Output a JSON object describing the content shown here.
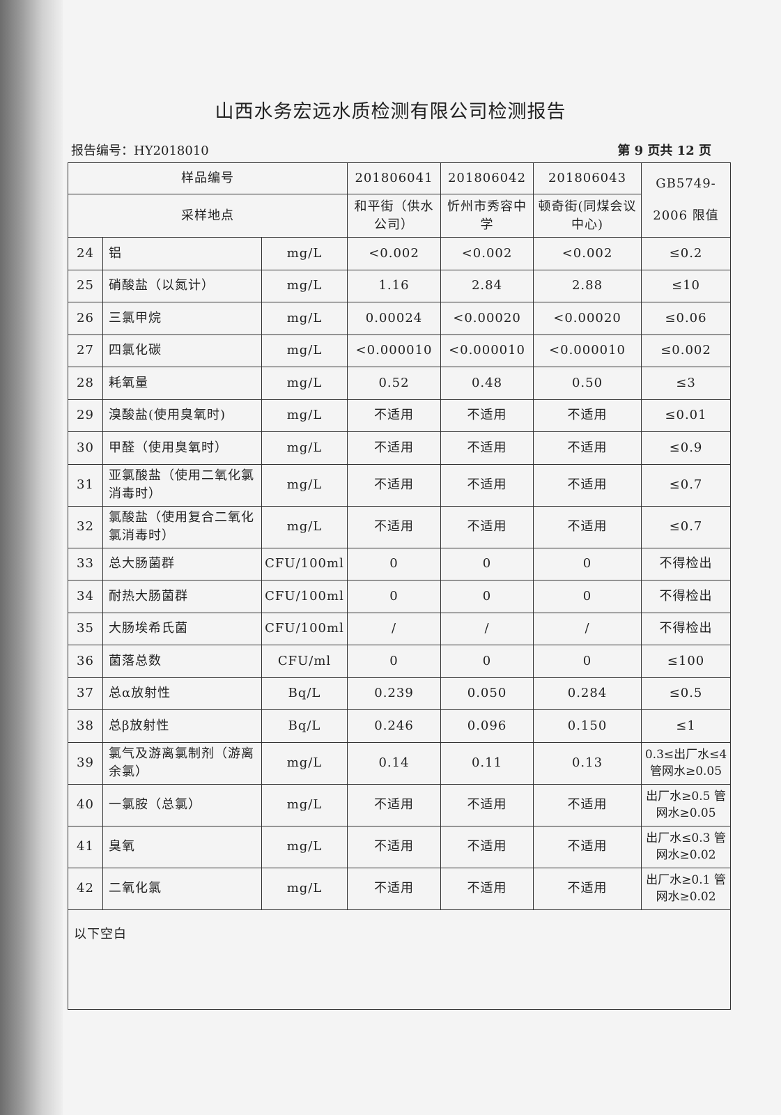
{
  "title": "山西水务宏远水质检测有限公司检测报告",
  "report_no": "报告编号：HY2018010",
  "page_no": "第 9 页共 12 页",
  "header": {
    "sample_id_label": "样品编号",
    "location_label": "采样地点",
    "standard_label": "GB5749-2006 限值",
    "samples": [
      {
        "id": "201806041",
        "location": "和平街（供水公司）"
      },
      {
        "id": "201806042",
        "location": "忻州市秀容中学"
      },
      {
        "id": "201806043",
        "location": "顿奇街(同煤会议中心)"
      }
    ]
  },
  "rows": [
    {
      "no": "24",
      "item": "铝",
      "unit": "mg/L",
      "v": [
        "<0.002",
        "<0.002",
        "<0.002"
      ],
      "limit": "≤0.2"
    },
    {
      "no": "25",
      "item": "硝酸盐（以氮计）",
      "unit": "mg/L",
      "v": [
        "1.16",
        "2.84",
        "2.88"
      ],
      "limit": "≤10"
    },
    {
      "no": "26",
      "item": "三氯甲烷",
      "unit": "mg/L",
      "v": [
        "0.00024",
        "<0.00020",
        "<0.00020"
      ],
      "limit": "≤0.06"
    },
    {
      "no": "27",
      "item": "四氯化碳",
      "unit": "mg/L",
      "v": [
        "<0.000010",
        "<0.000010",
        "<0.000010"
      ],
      "limit": "≤0.002"
    },
    {
      "no": "28",
      "item": "耗氧量",
      "unit": "mg/L",
      "v": [
        "0.52",
        "0.48",
        "0.50"
      ],
      "limit": "≤3"
    },
    {
      "no": "29",
      "item": "溴酸盐(使用臭氧时)",
      "unit": "mg/L",
      "v": [
        "不适用",
        "不适用",
        "不适用"
      ],
      "limit": "≤0.01"
    },
    {
      "no": "30",
      "item": "甲醛（使用臭氧时）",
      "unit": "mg/L",
      "v": [
        "不适用",
        "不适用",
        "不适用"
      ],
      "limit": "≤0.9"
    },
    {
      "no": "31",
      "item": "亚氯酸盐（使用二氧化氯消毒时）",
      "unit": "mg/L",
      "v": [
        "不适用",
        "不适用",
        "不适用"
      ],
      "limit": "≤0.7"
    },
    {
      "no": "32",
      "item": "氯酸盐（使用复合二氧化氯消毒时）",
      "unit": "mg/L",
      "v": [
        "不适用",
        "不适用",
        "不适用"
      ],
      "limit": "≤0.7"
    },
    {
      "no": "33",
      "item": "总大肠菌群",
      "unit": "CFU/100ml",
      "v": [
        "0",
        "0",
        "0"
      ],
      "limit": "不得检出"
    },
    {
      "no": "34",
      "item": "耐热大肠菌群",
      "unit": "CFU/100ml",
      "v": [
        "0",
        "0",
        "0"
      ],
      "limit": "不得检出"
    },
    {
      "no": "35",
      "item": "大肠埃希氏菌",
      "unit": "CFU/100ml",
      "v": [
        "/",
        "/",
        "/"
      ],
      "limit": "不得检出"
    },
    {
      "no": "36",
      "item": "菌落总数",
      "unit": "CFU/ml",
      "v": [
        "0",
        "0",
        "0"
      ],
      "limit": "≤100"
    },
    {
      "no": "37",
      "item": "总α放射性",
      "unit": "Bq/L",
      "v": [
        "0.239",
        "0.050",
        "0.284"
      ],
      "limit": "≤0.5"
    },
    {
      "no": "38",
      "item": "总β放射性",
      "unit": "Bq/L",
      "v": [
        "0.246",
        "0.096",
        "0.150"
      ],
      "limit": "≤1"
    },
    {
      "no": "39",
      "item": "氯气及游离氯制剂（游离余氯）",
      "unit": "mg/L",
      "v": [
        "0.14",
        "0.11",
        "0.13"
      ],
      "limit": "0.3≤出厂水≤4 管网水≥0.05"
    },
    {
      "no": "40",
      "item": "一氯胺（总氯）",
      "unit": "mg/L",
      "v": [
        "不适用",
        "不适用",
        "不适用"
      ],
      "limit": "出厂水≥0.5 管网水≥0.05"
    },
    {
      "no": "41",
      "item": "臭氧",
      "unit": "mg/L",
      "v": [
        "不适用",
        "不适用",
        "不适用"
      ],
      "limit": "出厂水≤0.3 管网水≥0.02"
    },
    {
      "no": "42",
      "item": "二氧化氯",
      "unit": "mg/L",
      "v": [
        "不适用",
        "不适用",
        "不适用"
      ],
      "limit": "出厂水≥0.1 管网水≥0.02"
    }
  ],
  "footer_note": "以下空白"
}
